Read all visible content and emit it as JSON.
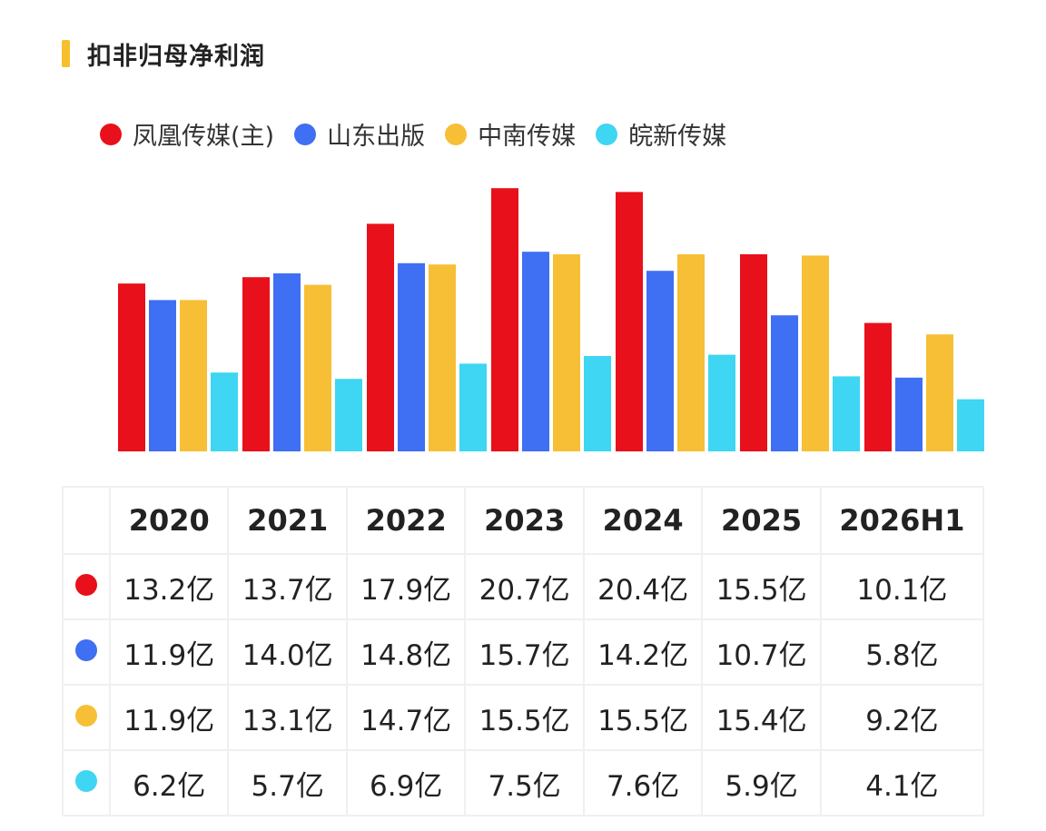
{
  "title": "扣非归母净利润",
  "colors": {
    "accent_bar": "#f6bf2c",
    "series": [
      "#e8101a",
      "#3f6ff2",
      "#f7bf35",
      "#3ed6f2"
    ]
  },
  "chart_data": {
    "type": "bar",
    "title": "扣非归母净利润",
    "categories": [
      "2020",
      "2021",
      "2022",
      "2023",
      "2024",
      "2025",
      "2026H1"
    ],
    "legend_position": "top-left",
    "grid": false,
    "series": [
      {
        "name": "凤凰传媒(主)",
        "color": "#e8101a",
        "values": [
          13.2,
          13.7,
          17.9,
          20.7,
          20.4,
          15.5,
          10.1
        ]
      },
      {
        "name": "山东出版",
        "color": "#3f6ff2",
        "values": [
          11.9,
          14.0,
          14.8,
          15.7,
          14.2,
          10.7,
          5.8
        ]
      },
      {
        "name": "中南传媒",
        "color": "#f7bf35",
        "values": [
          11.9,
          13.1,
          14.7,
          15.5,
          15.5,
          15.4,
          9.2
        ]
      },
      {
        "name": "皖新传媒",
        "color": "#3ed6f2",
        "values": [
          6.2,
          5.7,
          6.9,
          7.5,
          7.6,
          5.9,
          4.1
        ]
      }
    ]
  },
  "table": {
    "headers": [
      "2020",
      "2021",
      "2022",
      "2023",
      "2024",
      "2025",
      "2026H1"
    ],
    "rows": [
      {
        "color": "#e8101a",
        "cells": [
          "13.2亿",
          "13.7亿",
          "17.9亿",
          "20.7亿",
          "20.4亿",
          "15.5亿",
          "10.1亿"
        ]
      },
      {
        "color": "#3f6ff2",
        "cells": [
          "11.9亿",
          "14.0亿",
          "14.8亿",
          "15.7亿",
          "14.2亿",
          "10.7亿",
          "5.8亿"
        ]
      },
      {
        "color": "#f7bf35",
        "cells": [
          "11.9亿",
          "13.1亿",
          "14.7亿",
          "15.5亿",
          "15.5亿",
          "15.4亿",
          "9.2亿"
        ]
      },
      {
        "color": "#3ed6f2",
        "cells": [
          "6.2亿",
          "5.7亿",
          "6.9亿",
          "7.5亿",
          "7.6亿",
          "5.9亿",
          "4.1亿"
        ]
      }
    ]
  }
}
